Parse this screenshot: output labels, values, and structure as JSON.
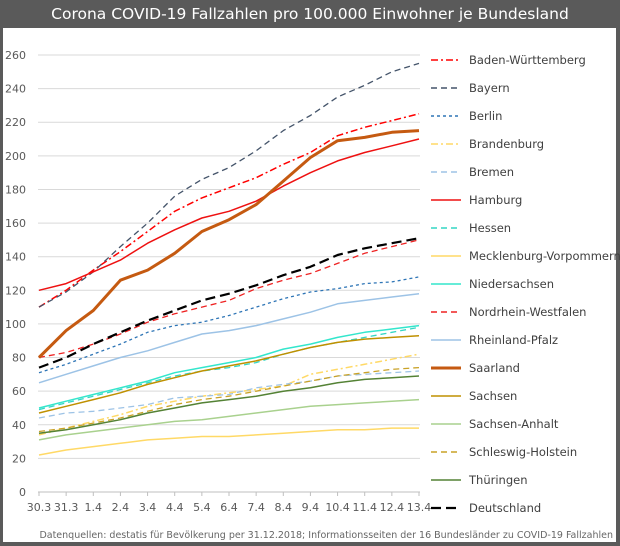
{
  "chart_data": {
    "type": "line",
    "title": "Corona COVID-19 Fallzahlen pro 100.000 Einwohner je Bundesland",
    "xlabel": "",
    "ylabel": "",
    "ylim": [
      0,
      260
    ],
    "y_ticks": [
      0,
      20,
      40,
      60,
      80,
      100,
      120,
      140,
      160,
      180,
      200,
      220,
      240,
      260
    ],
    "grid": true,
    "legend_position": "right",
    "categories": [
      "30.3",
      "31.3",
      "1.4",
      "2.4",
      "3.4",
      "4.4",
      "5.4",
      "6.4",
      "7.4",
      "8.4",
      "9.4",
      "10.4",
      "11.4",
      "12.4",
      "13.4"
    ],
    "series": [
      {
        "name": "Baden-Württemberg",
        "color": "#ff0000",
        "style": "dashdot",
        "values": [
          110,
          120,
          132,
          143,
          155,
          167,
          175,
          181,
          187,
          195,
          202,
          212,
          217,
          221,
          225
        ]
      },
      {
        "name": "Bayern",
        "color": "#44546a",
        "style": "dash",
        "values": [
          110,
          119,
          131,
          146,
          160,
          176,
          186,
          193,
          203,
          215,
          224,
          235,
          242,
          250,
          255
        ]
      },
      {
        "name": "Berlin",
        "color": "#2e75b6",
        "style": "shortdash",
        "values": [
          71,
          76,
          82,
          88,
          95,
          99,
          101,
          105,
          110,
          115,
          119,
          121,
          124,
          125,
          128
        ]
      },
      {
        "name": "Brandenburg",
        "color": "#ffd966",
        "style": "dashdot",
        "values": [
          34,
          38,
          42,
          46,
          51,
          54,
          57,
          59,
          61,
          63,
          70,
          73,
          76,
          79,
          82
        ]
      },
      {
        "name": "Bremen",
        "color": "#9dc3e6",
        "style": "dash",
        "values": [
          44,
          47,
          48,
          50,
          52,
          56,
          57,
          58,
          62,
          64,
          66,
          69,
          70,
          71,
          72
        ]
      },
      {
        "name": "Hamburg",
        "color": "#ee1111",
        "style": "solid",
        "values": [
          120,
          124,
          131,
          138,
          148,
          156,
          163,
          167,
          173,
          182,
          190,
          197,
          202,
          206,
          210
        ]
      },
      {
        "name": "Hessen",
        "color": "#33d6c4",
        "style": "dash",
        "values": [
          49,
          53,
          57,
          61,
          65,
          69,
          72,
          74,
          77,
          82,
          86,
          89,
          92,
          95,
          98
        ]
      },
      {
        "name": "Mecklenburg-Vorpommern",
        "color": "#ffd966",
        "style": "solid",
        "values": [
          22,
          25,
          27,
          29,
          31,
          32,
          33,
          33,
          34,
          35,
          36,
          37,
          37,
          38,
          38
        ]
      },
      {
        "name": "Niedersachsen",
        "color": "#33e6cc",
        "style": "solid",
        "values": [
          50,
          54,
          58,
          62,
          66,
          71,
          74,
          77,
          80,
          85,
          88,
          92,
          95,
          97,
          99
        ]
      },
      {
        "name": "Nordrhein-Westfalen",
        "color": "#ee2222",
        "style": "dash",
        "values": [
          80,
          83,
          88,
          94,
          101,
          106,
          110,
          114,
          121,
          126,
          130,
          136,
          142,
          146,
          150
        ]
      },
      {
        "name": "Rheinland-Pfalz",
        "color": "#9dc3e6",
        "style": "solid",
        "values": [
          65,
          70,
          75,
          80,
          84,
          89,
          94,
          96,
          99,
          103,
          107,
          112,
          114,
          116,
          118
        ]
      },
      {
        "name": "Saarland",
        "color": "#c55a11",
        "style": "thick",
        "values": [
          80,
          96,
          108,
          126,
          132,
          142,
          155,
          162,
          171,
          185,
          199,
          209,
          211,
          214,
          215
        ]
      },
      {
        "name": "Sachsen",
        "color": "#bf9000",
        "style": "solid",
        "values": [
          47,
          51,
          55,
          59,
          64,
          68,
          72,
          75,
          78,
          82,
          86,
          89,
          91,
          92,
          93
        ]
      },
      {
        "name": "Sachsen-Anhalt",
        "color": "#a9d18e",
        "style": "solid",
        "values": [
          31,
          34,
          36,
          38,
          40,
          42,
          43,
          45,
          47,
          49,
          51,
          52,
          53,
          54,
          55
        ]
      },
      {
        "name": "Schleswig-Holstein",
        "color": "#c9a227",
        "style": "dash",
        "values": [
          36,
          38,
          41,
          44,
          48,
          52,
          55,
          57,
          60,
          63,
          66,
          69,
          71,
          73,
          74
        ]
      },
      {
        "name": "Thüringen",
        "color": "#548235",
        "style": "solid",
        "values": [
          35,
          37,
          40,
          43,
          47,
          50,
          53,
          55,
          57,
          60,
          62,
          65,
          67,
          68,
          69
        ]
      },
      {
        "name": "Deutschland",
        "color": "#000000",
        "style": "longdash",
        "values": [
          74,
          80,
          88,
          95,
          102,
          108,
          114,
          118,
          123,
          129,
          134,
          141,
          145,
          148,
          151
        ]
      }
    ],
    "annotations": [
      "Datenquellen: destatis für Bevölkerung per 31.12.2018; Informationsseiten der 16 Bundesländer zu COVID-19 Fallzahlen"
    ]
  }
}
